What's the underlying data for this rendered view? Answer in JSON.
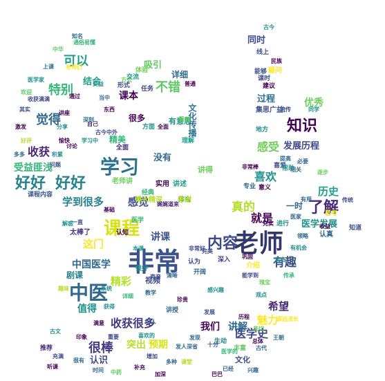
{
  "word_cloud": {
    "words": [
      {
        "text": "老师",
        "color": "#31386b"
      },
      {
        "text": "非常",
        "color": "#3b528b"
      },
      {
        "text": "学习",
        "color": "#2c728e"
      },
      {
        "text": "中医",
        "color": "#31688e"
      },
      {
        "text": "课程",
        "color": "#d8e219"
      },
      {
        "text": "好好",
        "color": "#26828e"
      },
      {
        "text": "好好",
        "color": "#26828e"
      },
      {
        "text": "内容",
        "color": "#3e4a89"
      },
      {
        "text": "知识",
        "color": "#440154"
      },
      {
        "text": "了解",
        "color": "#482878"
      },
      {
        "text": "可以",
        "color": "#1f9e89"
      },
      {
        "text": "特别",
        "color": "#35b779"
      },
      {
        "text": "觉得",
        "color": "#31688e"
      },
      {
        "text": "不错",
        "color": "#5ec962"
      },
      {
        "text": "收获",
        "color": "#482878"
      },
      {
        "text": "很棒",
        "color": "#443983"
      },
      {
        "text": "感受",
        "color": "#6ece58"
      },
      {
        "text": "有趣",
        "color": "#3b528b"
      },
      {
        "text": "历史",
        "color": "#1f9e89"
      },
      {
        "text": "就是",
        "color": "#440154"
      },
      {
        "text": "真的",
        "color": "#b5de2b"
      },
      {
        "text": "喜欢",
        "color": "#21918c"
      },
      {
        "text": "医学史",
        "color": "#3e4a89"
      },
      {
        "text": "讲解",
        "color": "#31688e"
      },
      {
        "text": "我们",
        "color": "#440154"
      },
      {
        "text": "魅力",
        "color": "#fde725"
      },
      {
        "text": "希望",
        "color": "#482878"
      },
      {
        "text": "精彩",
        "color": "#b5de2b"
      },
      {
        "text": "中国医学",
        "color": "#31688e"
      },
      {
        "text": "收获很多",
        "color": "#443983"
      },
      {
        "text": "值得",
        "color": "#21918c"
      },
      {
        "text": "讲课",
        "color": "#3b528b"
      },
      {
        "text": "这门",
        "color": "#fde725"
      },
      {
        "text": "感觉",
        "color": "#3e4a89"
      },
      {
        "text": "学到很多",
        "color": "#26828e"
      },
      {
        "text": "受益匪浅",
        "color": "#35b779"
      },
      {
        "text": "课程内容",
        "color": "#3b528b"
      },
      {
        "text": "一时",
        "color": "#31688e"
      },
      {
        "text": "医学发展",
        "color": "#21918c"
      },
      {
        "text": "发展历程",
        "color": "#3e4a89"
      },
      {
        "text": "优秀",
        "color": "#6ece58"
      },
      {
        "text": "同时",
        "color": "#3e4a89"
      },
      {
        "text": "吸引",
        "color": "#5ec962"
      },
      {
        "text": "结合",
        "color": "#1f9e89"
      },
      {
        "text": "课本",
        "color": "#440154"
      },
      {
        "text": "详细",
        "color": "#31688e"
      },
      {
        "text": "过程",
        "color": "#2c728e"
      },
      {
        "text": "认识",
        "color": "#3e4a89"
      },
      {
        "text": "突出",
        "color": "#b5de2b"
      },
      {
        "text": "预期",
        "color": "#d8e219"
      },
      {
        "text": "剧课",
        "color": "#26828e"
      },
      {
        "text": "视频",
        "color": "#3e4a89"
      },
      {
        "text": "精美",
        "color": "#35b779"
      },
      {
        "text": "有意思",
        "color": "#21918c"
      },
      {
        "text": "文化传播",
        "color": "#2c728e"
      },
      {
        "text": "没有",
        "color": "#31688e"
      },
      {
        "text": "讲得",
        "color": "#6ece58"
      },
      {
        "text": "知道",
        "color": "#3b528b"
      },
      {
        "text": "认真",
        "color": "#31688e"
      },
      {
        "text": "看到",
        "color": "#5ec962"
      },
      {
        "text": "很多",
        "color": "#440154"
      },
      {
        "text": "方面",
        "color": "#21918c"
      },
      {
        "text": "深入",
        "color": "#443983"
      },
      {
        "text": "讲述",
        "color": "#1f9e89"
      },
      {
        "text": "实用",
        "color": "#440154"
      },
      {
        "text": "经典",
        "color": "#35b779"
      },
      {
        "text": "文化",
        "color": "#3e4a89"
      },
      {
        "text": "丰富",
        "color": "#5ec962"
      },
      {
        "text": "生动",
        "color": "#26828e"
      },
      {
        "text": "全面",
        "color": "#482878"
      },
      {
        "text": "体会",
        "color": "#21918c"
      },
      {
        "text": "认为",
        "color": "#3e4a89"
      },
      {
        "text": "介绍",
        "color": "#fde725"
      },
      {
        "text": "感谢",
        "color": "#b5de2b"
      },
      {
        "text": "开阔",
        "color": "#31688e"
      },
      {
        "text": "老师讲",
        "color": "#6ece58"
      },
      {
        "text": "东西",
        "color": "#440154"
      },
      {
        "text": "深刻",
        "color": "#2c728e"
      },
      {
        "text": "能够",
        "color": "#3b528b"
      },
      {
        "text": "进行",
        "color": "#21918c"
      },
      {
        "text": "意义",
        "color": "#440154"
      },
      {
        "text": "传承",
        "color": "#35b779"
      },
      {
        "text": "相关",
        "color": "#31688e"
      },
      {
        "text": "喜爱",
        "color": "#3b528b"
      },
      {
        "text": "思考",
        "color": "#d8e219"
      },
      {
        "text": "专业",
        "color": "#31688e"
      },
      {
        "text": "充实",
        "color": "#440154"
      },
      {
        "text": "讲授",
        "color": "#31688e"
      },
      {
        "text": "学习中",
        "color": "#21918c"
      },
      {
        "text": "太棒了",
        "color": "#443983"
      },
      {
        "text": "一直",
        "color": "#3b528b"
      },
      {
        "text": "医学",
        "color": "#35b779"
      },
      {
        "text": "古代",
        "color": "#31688e"
      },
      {
        "text": "认知",
        "color": "#440154"
      },
      {
        "text": "方式",
        "color": "#6ece58"
      },
      {
        "text": "问题",
        "color": "#3b528b"
      },
      {
        "text": "帮助",
        "color": "#21918c"
      },
      {
        "text": "推荐",
        "color": "#482878"
      },
      {
        "text": "时间",
        "color": "#31688e"
      },
      {
        "text": "形式",
        "color": "#3e4a89"
      },
      {
        "text": "交流",
        "color": "#1f9e89"
      },
      {
        "text": "体验",
        "color": "#6ece58"
      },
      {
        "text": "很好",
        "color": "#21918c"
      },
      {
        "text": "任务",
        "color": "#3e4a89"
      },
      {
        "text": "普通",
        "color": "#440154"
      },
      {
        "text": "讲座",
        "color": "#440154"
      },
      {
        "text": "自己",
        "color": "#482878"
      },
      {
        "text": "线上",
        "color": "#3b528b"
      },
      {
        "text": "知名",
        "color": "#31688e"
      },
      {
        "text": "中华",
        "color": "#5ec962"
      },
      {
        "text": "地方",
        "color": "#21918c"
      },
      {
        "text": "课时",
        "color": "#3e4a89"
      },
      {
        "text": "建议",
        "color": "#440154"
      },
      {
        "text": "提高",
        "color": "#31688e"
      },
      {
        "text": "全面",
        "color": "#440154"
      },
      {
        "text": "同学",
        "color": "#21918c"
      },
      {
        "text": "流传",
        "color": "#3e4a89"
      },
      {
        "text": "博大精深",
        "color": "#b5de2b"
      },
      {
        "text": "理解",
        "color": "#1f9e89"
      },
      {
        "text": "疑问",
        "color": "#fde725"
      },
      {
        "text": "集思广益",
        "color": "#3b528b"
      },
      {
        "text": "必要",
        "color": "#31688e"
      },
      {
        "text": "逐步",
        "color": "#6ece58"
      },
      {
        "text": "实在",
        "color": "#21918c"
      },
      {
        "text": "巩固",
        "color": "#440154"
      },
      {
        "text": "非常好",
        "color": "#3e4a89"
      },
      {
        "text": "完美",
        "color": "#3b528b"
      },
      {
        "text": "清晰",
        "color": "#31688e"
      },
      {
        "text": "详细",
        "color": "#35b779"
      },
      {
        "text": "满意",
        "color": "#440154"
      },
      {
        "text": "声音",
        "color": "#3e4a89"
      },
      {
        "text": "引人",
        "color": "#31688e"
      },
      {
        "text": "本课",
        "color": "#21918c"
      },
      {
        "text": "基础",
        "color": "#440154"
      },
      {
        "text": "娓娓道来",
        "color": "#482878"
      },
      {
        "text": "教学",
        "color": "#31688e"
      },
      {
        "text": "获得",
        "color": "#21918c"
      },
      {
        "text": "补充",
        "color": "#440154"
      },
      {
        "text": "增加",
        "color": "#3e4a89"
      },
      {
        "text": "印象",
        "color": "#440154"
      },
      {
        "text": "很有",
        "color": "#31688e"
      },
      {
        "text": "系统",
        "color": "#21918c"
      },
      {
        "text": "重要",
        "color": "#3e4a89"
      },
      {
        "text": "多种",
        "color": "#31688e"
      },
      {
        "text": "中药",
        "color": "#5ec962"
      },
      {
        "text": "听课",
        "color": "#440154"
      },
      {
        "text": "喜欢的",
        "color": "#21918c"
      },
      {
        "text": "发人深省",
        "color": "#31688e"
      },
      {
        "text": "趣味",
        "color": "#b5de2b"
      },
      {
        "text": "发展",
        "color": "#3b528b"
      },
      {
        "text": "源远流长",
        "color": "#fde725"
      },
      {
        "text": "历程",
        "color": "#440154"
      },
      {
        "text": "王朝",
        "color": "#31688e"
      },
      {
        "text": "有机会",
        "color": "#21918c"
      },
      {
        "text": "能学到",
        "color": "#3e4a89"
      },
      {
        "text": "医学的",
        "color": "#35b779"
      },
      {
        "text": "总体",
        "color": "#440154"
      },
      {
        "text": "十分",
        "color": "#3b528b"
      },
      {
        "text": "医家",
        "color": "#31688e"
      },
      {
        "text": "古今",
        "color": "#21918c"
      },
      {
        "text": "民族",
        "color": "#440154"
      },
      {
        "text": "瑰宝",
        "color": "#6ece58"
      },
      {
        "text": "有用",
        "color": "#31688e"
      },
      {
        "text": "收益",
        "color": "#440154"
      },
      {
        "text": "观点",
        "color": "#21918c"
      },
      {
        "text": "传统",
        "color": "#3e4a89"
      },
      {
        "text": "领略",
        "color": "#31688e"
      },
      {
        "text": "非常棒",
        "color": "#440154"
      },
      {
        "text": "好评",
        "color": "#b5de2b"
      },
      {
        "text": "医学家",
        "color": "#21918c"
      },
      {
        "text": "其实",
        "color": "#3b528b"
      },
      {
        "text": "激发",
        "color": "#440154"
      },
      {
        "text": "多多",
        "color": "#31688e"
      },
      {
        "text": "积累",
        "color": "#21918c"
      },
      {
        "text": "收获满满",
        "color": "#3e4a89"
      },
      {
        "text": "通过",
        "color": "#440154"
      },
      {
        "text": "上课",
        "color": "#31688e"
      },
      {
        "text": "老师们",
        "color": "#fde725"
      },
      {
        "text": "受益",
        "color": "#21918c"
      },
      {
        "text": "欢迎",
        "color": "#5ec962"
      },
      {
        "text": "讨论",
        "color": "#440154"
      },
      {
        "text": "当中",
        "color": "#31688e"
      },
      {
        "text": "通俗易懂",
        "color": "#35b779"
      },
      {
        "text": "分享",
        "color": "#21918c"
      },
      {
        "text": "古今中外",
        "color": "#3e4a89"
      },
      {
        "text": "愉快",
        "color": "#440154"
      },
      {
        "text": "兴趣",
        "color": "#31688e"
      },
      {
        "text": "感兴趣",
        "color": "#21918c"
      },
      {
        "text": "亲切",
        "color": "#6ece58"
      },
      {
        "text": "巴巴",
        "color": "#440154"
      },
      {
        "text": "已经",
        "color": "#31688e"
      },
      {
        "text": "古文",
        "color": "#21918c"
      },
      {
        "text": "充满",
        "color": "#3e4a89"
      },
      {
        "text": "加深",
        "color": "#440154"
      },
      {
        "text": "课堂",
        "color": "#b5de2b"
      },
      {
        "text": "发现",
        "color": "#31688e"
      },
      {
        "text": "解惑",
        "color": "#21918c"
      },
      {
        "text": "珍贵",
        "color": "#440154"
      },
      {
        "text": "广泛",
        "color": "#3e4a89"
      },
      {
        "text": "大家",
        "color": "#31688e"
      },
      {
        "text": "欣赏",
        "color": "#21918c"
      },
      {
        "text": "认可",
        "color": "#440154"
      }
    ]
  }
}
